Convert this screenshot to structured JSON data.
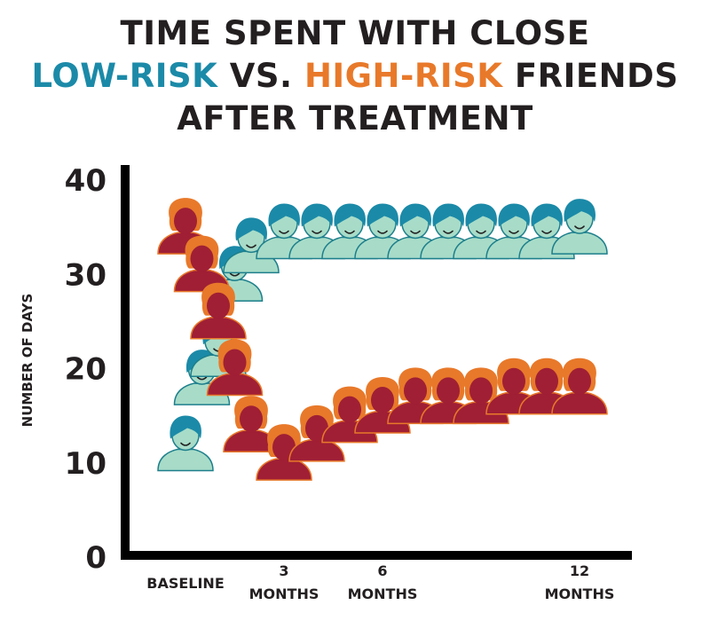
{
  "title": {
    "line1": "TIME SPENT WITH CLOSE",
    "low_label": "LOW-RISK",
    "vs": " VS. ",
    "high_label": "HIGH-RISK",
    "friends": " FRIENDS",
    "line3": "AFTER TREATMENT"
  },
  "colors": {
    "title_text": "#231f20",
    "low_risk_head": "#1b8aa8",
    "low_risk_body": "#a8dcc8",
    "high_risk_head": "#e8792a",
    "high_risk_body": "#a01f35"
  },
  "icons": {
    "low_risk": "person-icon",
    "high_risk": "person-icon"
  },
  "chart_data": {
    "type": "scatter",
    "ylabel": "NUMBER OF DAYS",
    "xlabel": "",
    "ylim": [
      0,
      40
    ],
    "yticks": [
      "0",
      "10",
      "20",
      "30",
      "40"
    ],
    "xticks": [
      {
        "x": 0,
        "lines": [
          "BASELINE"
        ]
      },
      {
        "x": 3,
        "lines": [
          "3",
          "MONTHS"
        ]
      },
      {
        "x": 6,
        "lines": [
          "6",
          "MONTHS"
        ]
      },
      {
        "x": 12,
        "lines": [
          "12",
          "MONTHS"
        ]
      }
    ],
    "grid": false,
    "series": [
      {
        "key": "low_risk",
        "x": [
          0,
          0.5,
          1,
          1.5,
          2,
          3,
          4,
          5,
          6,
          7,
          8,
          9,
          10,
          11,
          12
        ],
        "y": [
          12,
          19,
          22,
          30,
          33,
          34.5,
          34.5,
          34.5,
          34.5,
          34.5,
          34.5,
          34.5,
          34.5,
          34.5,
          35
        ]
      },
      {
        "key": "high_risk",
        "x": [
          0,
          0.5,
          1,
          1.5,
          2,
          3,
          4,
          5,
          6,
          7,
          8,
          9,
          10,
          11,
          12
        ],
        "y": [
          35,
          31,
          26,
          20,
          14,
          11,
          13,
          15,
          16,
          17,
          17,
          17,
          18,
          18,
          18
        ]
      }
    ]
  }
}
